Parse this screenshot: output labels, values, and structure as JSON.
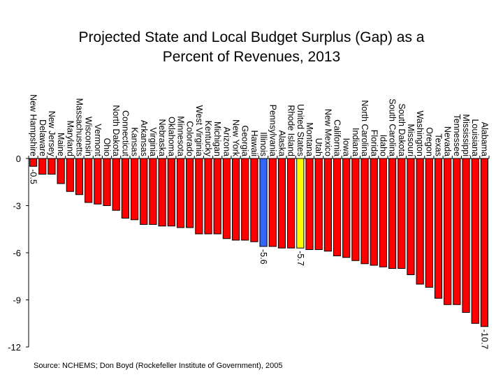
{
  "chart_data": {
    "type": "bar",
    "title_lines": [
      "Projected State and Local Budget Surplus (Gap) as a",
      "Percent of Revenues, 2013"
    ],
    "xlabel": "",
    "ylabel": "",
    "ylim": [
      -12,
      0
    ],
    "yticks": [
      0,
      -3,
      -6,
      -9,
      -12
    ],
    "grid": false,
    "categories": [
      "New Hampshire",
      "Delaware",
      "New Jersey",
      "Maine",
      "Maryland",
      "Massachusetts",
      "Wisconsin",
      "Vermont",
      "Ohio",
      "North Dakota",
      "Connecticut",
      "Kansas",
      "Arkansas",
      "Virginia",
      "Nebraska",
      "Oklahoma",
      "Minnesota",
      "Colorado",
      "West Virginia",
      "Kentucky",
      "Michigan",
      "Arizona",
      "New York",
      "Georgia",
      "Hawaii",
      "Illinois",
      "Pennsylvania",
      "Alaska",
      "Rhode Island",
      "United States",
      "Montana",
      "Utah",
      "New Mexico",
      "California",
      "Iowa",
      "Indiana",
      "North Carolina",
      "Florida",
      "Idaho",
      "South Carolina",
      "South Dakota",
      "Missouri",
      "Washington",
      "Oregon",
      "Texas",
      "Nevada",
      "Tennessee",
      "Mississippi",
      "Louisiana",
      "Alabama"
    ],
    "values": [
      -0.5,
      -1.0,
      -1.0,
      -1.6,
      -2.1,
      -2.3,
      -2.8,
      -2.9,
      -3.0,
      -3.3,
      -3.8,
      -3.9,
      -4.2,
      -4.2,
      -4.3,
      -4.3,
      -4.4,
      -4.4,
      -4.8,
      -4.8,
      -4.8,
      -5.1,
      -5.2,
      -5.2,
      -5.3,
      -5.6,
      -5.6,
      -5.7,
      -5.7,
      -5.7,
      -5.8,
      -5.8,
      -5.9,
      -6.2,
      -6.3,
      -6.5,
      -6.7,
      -6.8,
      -6.9,
      -7.0,
      -7.0,
      -7.4,
      -8.0,
      -8.2,
      -8.9,
      -9.3,
      -9.3,
      -9.8,
      -10.5,
      -10.7
    ],
    "data_labels": {
      "New Hampshire": "-0.5",
      "Illinois": "-5.6",
      "United States": "-5.7",
      "Alabama": "-10.7"
    },
    "colors": {
      "default": "#ff0000",
      "Illinois": "#3366ff",
      "United States": "#ffff00",
      "outline": "#000000"
    },
    "source": "Source:  NCHEMS; Don Boyd (Rockefeller Institute of Government), 2005"
  }
}
